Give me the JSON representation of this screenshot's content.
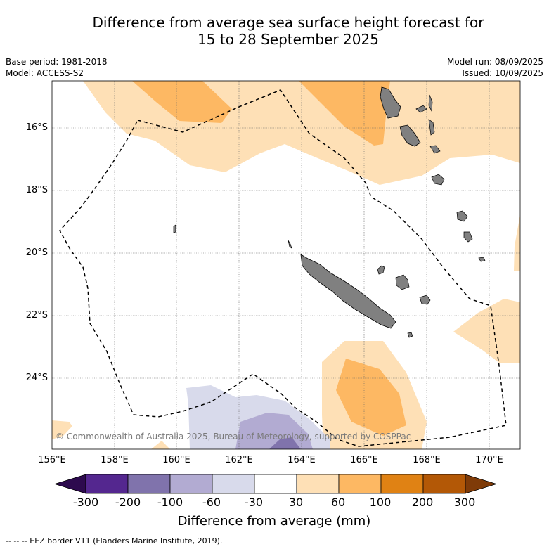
{
  "title": {
    "line1": "Difference from average sea surface height forecast for",
    "line2": "15 to 28 September 2025"
  },
  "meta": {
    "base_period": "Base period: 1981-2018",
    "model": "Model: ACCESS-S2",
    "model_run": "Model run: 08/09/2025",
    "issued": "Issued: 10/09/2025"
  },
  "axes": {
    "lat_labels": [
      "16°S",
      "18°S",
      "20°S",
      "22°S",
      "24°S"
    ],
    "lon_labels": [
      "156°E",
      "158°E",
      "160°E",
      "162°E",
      "164°E",
      "166°E",
      "168°E",
      "170°E"
    ]
  },
  "credit": "© Commonwealth of Australia 2025, Bureau of Meteorology, supported by COSPPac",
  "colorbar": {
    "title": "Difference from average (mm)",
    "tick_labels": [
      "-300",
      "-200",
      "-100",
      "-60",
      "-30",
      "30",
      "60",
      "100",
      "200",
      "300"
    ],
    "colors": [
      "#2d0a4e",
      "#54278f",
      "#8073ac",
      "#b2abd2",
      "#d8daeb",
      "#ffffff",
      "#fee0b6",
      "#fdb863",
      "#e08214",
      "#b35806",
      "#7f3b08"
    ]
  },
  "footer": "--  --  -- EEZ border V11 (Flanders Marine Institute, 2019).",
  "colors": {
    "land": "#808080",
    "eez": "#000000",
    "grid": "#666666"
  }
}
